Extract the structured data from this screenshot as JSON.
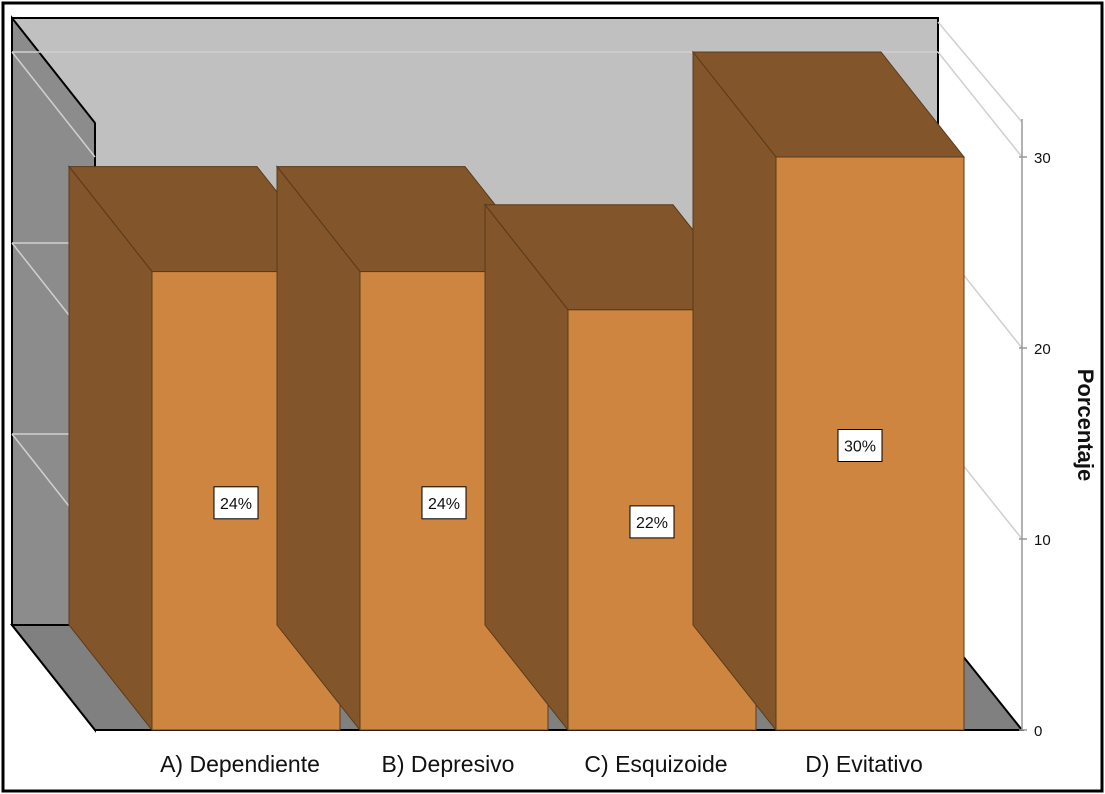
{
  "chart_data": {
    "type": "bar",
    "categories": [
      "A) Dependiente",
      "B) Depresivo",
      "C) Esquizoide",
      "D) Evitativo"
    ],
    "values": [
      24,
      24,
      22,
      30
    ],
    "data_labels": [
      "24%",
      "24%",
      "22%",
      "30%"
    ],
    "title": "",
    "xlabel": "",
    "ylabel": "Porcentaje",
    "ylim": [
      0,
      30
    ],
    "yticks": [
      0,
      10,
      20,
      30
    ],
    "grid": true,
    "style": "3d",
    "colors": {
      "bar_front": "#cd853f",
      "bar_side": "#83552a",
      "bar_top": "#83552a",
      "back_wall": "#c0c0c0",
      "side_wall": "#8c8c8c",
      "floor": "#808080",
      "gridline": "#d0d0d0"
    }
  }
}
